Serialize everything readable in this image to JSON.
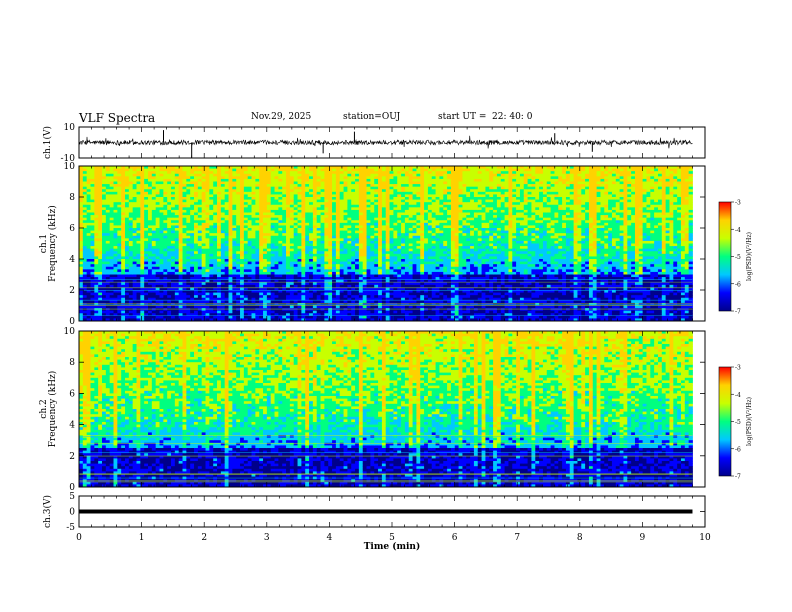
{
  "header": {
    "title": "VLF Spectra",
    "date": "Nov.29, 2025",
    "station": "station=OUJ",
    "start_label": "start  UT =",
    "start_value": "22: 40: 0"
  },
  "colors": {
    "spectrogram_scale": [
      "#00008b",
      "#0000ff",
      "#00c8ff",
      "#00ff80",
      "#c8ff00",
      "#ffd200",
      "#ff0000"
    ],
    "trace": "#000000"
  },
  "chart_data": [
    {
      "id": "ch1-waveform",
      "type": "line",
      "ylabel": "ch.1(V)",
      "ylim": [
        -10,
        10
      ],
      "yticks": [
        "10",
        "-10"
      ],
      "xlim": [
        0,
        9.8
      ],
      "baseline": 0,
      "noise_amplitude": 1.5,
      "spikes": [
        {
          "t": 1.35,
          "v": 8
        },
        {
          "t": 1.8,
          "v": -10
        },
        {
          "t": 3.9,
          "v": -7
        },
        {
          "t": 4.4,
          "v": 7
        },
        {
          "t": 7.6,
          "v": 6
        },
        {
          "t": 8.2,
          "v": -6
        }
      ]
    },
    {
      "id": "ch1-spectrogram",
      "type": "heatmap",
      "ylabel": "ch.1",
      "ylabel2": "Frequency (kHz)",
      "ylim": [
        0,
        10
      ],
      "yticks": [
        "0",
        "2",
        "4",
        "6",
        "8",
        "10"
      ],
      "xlim": [
        0,
        9.8
      ],
      "band_edge_khz": 4.8,
      "low_band_top_khz": 3,
      "colorbar": {
        "label": "log(PSD)(V²/Hz)",
        "ticks": [
          "-3",
          "-4",
          "-5",
          "-6",
          "-7"
        ],
        "range": [
          -7,
          -3
        ]
      }
    },
    {
      "id": "ch2-spectrogram",
      "type": "heatmap",
      "ylabel": "ch.2",
      "ylabel2": "Frequency (kHz)",
      "ylim": [
        0,
        10
      ],
      "yticks": [
        "0",
        "2",
        "4",
        "6",
        "8",
        "10"
      ],
      "xlim": [
        0,
        9.8
      ],
      "band_edge_khz": 4.2,
      "low_band_top_khz": 2.5,
      "colorbar": {
        "label": "log(PSD)(V²/Hz)",
        "ticks": [
          "-3",
          "-4",
          "-5",
          "-6",
          "-7"
        ],
        "range": [
          -7,
          -3
        ]
      }
    },
    {
      "id": "ch3-waveform",
      "type": "line",
      "ylabel": "ch.3(V)",
      "ylim": [
        -5,
        5
      ],
      "yticks": [
        "5",
        "0",
        "-5"
      ],
      "xlim": [
        0,
        9.8
      ],
      "baseline": 0,
      "noise_amplitude": 0
    }
  ],
  "xaxis": {
    "label": "Time (min)",
    "ticks": [
      "0",
      "1",
      "2",
      "3",
      "4",
      "5",
      "6",
      "7",
      "8",
      "9",
      "10"
    ],
    "range": [
      0,
      10
    ]
  }
}
